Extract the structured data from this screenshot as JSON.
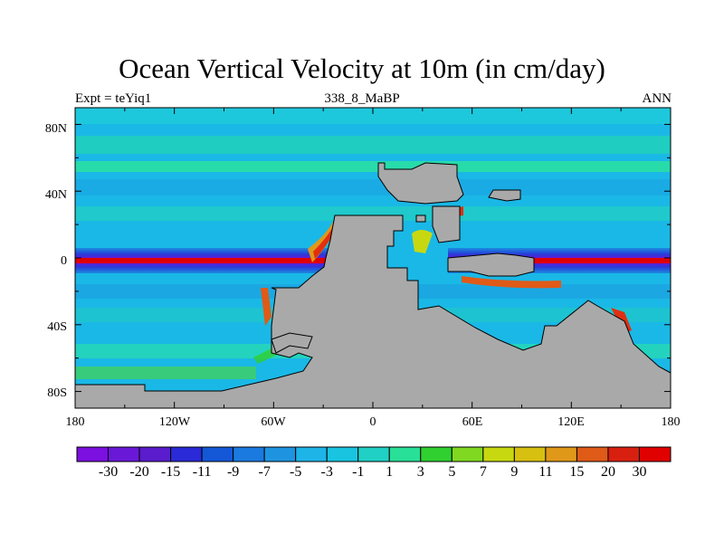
{
  "title": "Ocean Vertical Velocity at 10m (in cm/day)",
  "subtitle_left": "Expt = teYiq1",
  "subtitle_center": "338_8_MaBP",
  "subtitle_right": "ANN",
  "lat_labels": [
    "80N",
    "40N",
    "0",
    "40S",
    "80S"
  ],
  "lon_labels": [
    "180",
    "120W",
    "60W",
    "0",
    "60E",
    "120E",
    "180"
  ],
  "colorbar": {
    "labels": [
      "-30",
      "-20",
      "-15",
      "-11",
      "-9",
      "-7",
      "-5",
      "-3",
      "-1",
      "1",
      "3",
      "5",
      "7",
      "9",
      "11",
      "15",
      "20",
      "30"
    ],
    "colors": [
      "#7b10e0",
      "#6a18d8",
      "#5a1ccc",
      "#2a2ad8",
      "#1458d8",
      "#1a7ae0",
      "#1e94e0",
      "#1eb4e8",
      "#18c4e0",
      "#20d0c4",
      "#28e098",
      "#30d030",
      "#80d820",
      "#c8d810",
      "#d8c010",
      "#e09818",
      "#e05a18",
      "#d82010",
      "#e00000"
    ]
  },
  "colors": {
    "land": "#a9a9a9",
    "ocean_base": "#1ab8e6"
  }
}
